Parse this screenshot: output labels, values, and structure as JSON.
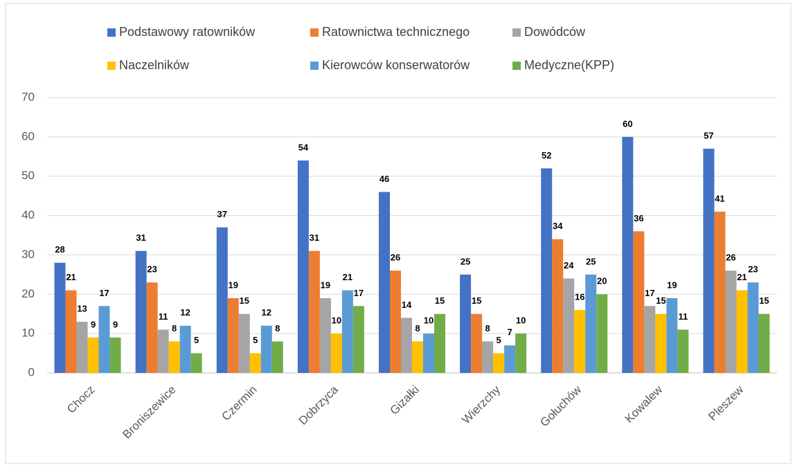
{
  "chart_data": {
    "type": "bar",
    "categories": [
      "Chocz",
      "Broniszewice",
      "Czermin",
      "Dobrzyca",
      "Gizałki",
      "Wierzchy",
      "Gołuchów",
      "Kowalew",
      "Pleszew"
    ],
    "series": [
      {
        "name": "Podstawowy ratowników",
        "color": "#4472c4",
        "values": [
          28,
          31,
          37,
          54,
          46,
          25,
          52,
          60,
          57
        ]
      },
      {
        "name": "Ratownictwa technicznego",
        "color": "#ed7d31",
        "values": [
          21,
          23,
          19,
          31,
          26,
          15,
          34,
          36,
          41
        ]
      },
      {
        "name": "Dowódców",
        "color": "#a5a5a5",
        "values": [
          13,
          11,
          15,
          19,
          14,
          8,
          24,
          17,
          26
        ]
      },
      {
        "name": "Naczelników",
        "color": "#ffc000",
        "values": [
          9,
          8,
          5,
          10,
          8,
          5,
          16,
          15,
          21
        ]
      },
      {
        "name": "Kierowców konserwatorów",
        "color": "#5b9bd5",
        "values": [
          17,
          12,
          12,
          21,
          10,
          7,
          25,
          19,
          23
        ]
      },
      {
        "name": "Medyczne(KPP)",
        "color": "#70ad47",
        "values": [
          9,
          5,
          8,
          17,
          15,
          10,
          20,
          11,
          15
        ]
      }
    ],
    "ylim": [
      0,
      70
    ],
    "yticks": [
      0,
      10,
      20,
      30,
      40,
      50,
      60,
      70
    ],
    "grid": true,
    "legend": "top",
    "data_labels": true
  }
}
